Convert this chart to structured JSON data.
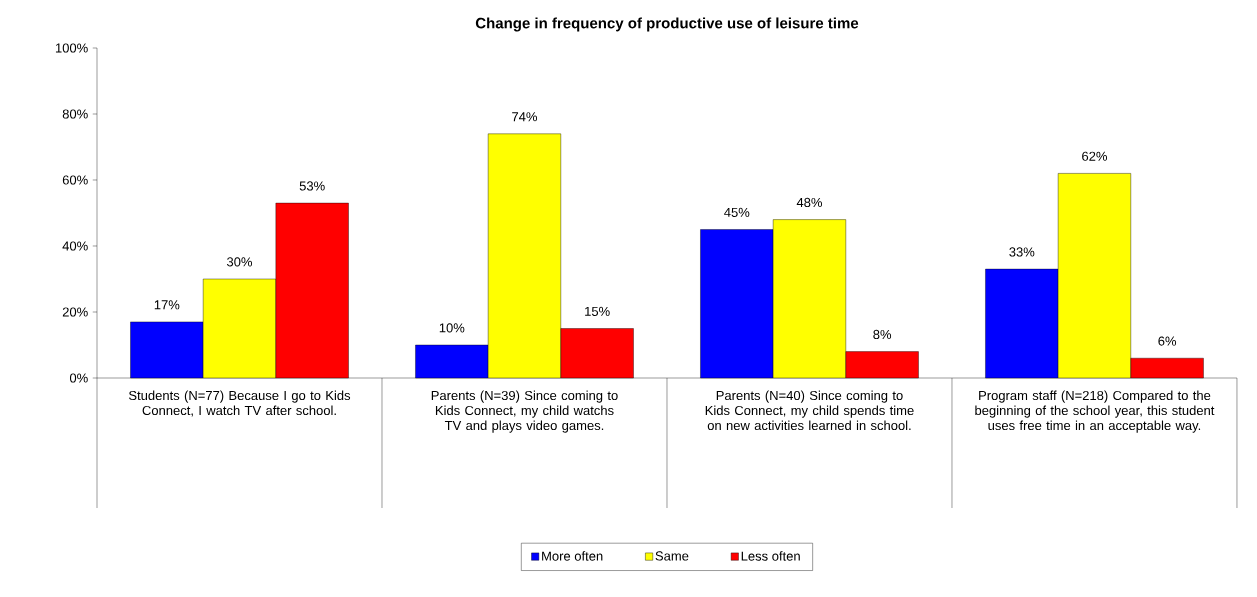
{
  "chart_data": {
    "type": "bar",
    "title": "Change in frequency of productive use of leisure time",
    "categories": [
      "Students (N=77) Because I go to Kids Connect, I watch TV after school.",
      "Parents (N=39) Since coming to Kids Connect, my child watchs TV and plays video games.",
      "Parents (N=40) Since coming to Kids Connect, my child spends time on new activities learned in school.",
      "Program staff (N=218) Compared to the beginning of the school year, this student uses free time in an acceptable way."
    ],
    "series": [
      {
        "name": "More often",
        "color": "#0000ff",
        "values": [
          17,
          10,
          45,
          33
        ],
        "value_labels": [
          "17%",
          "10%",
          "45%",
          "33%"
        ]
      },
      {
        "name": "Same",
        "color": "#ffff00",
        "values": [
          30,
          74,
          48,
          62
        ],
        "value_labels": [
          "30%",
          "74%",
          "48%",
          "62%"
        ]
      },
      {
        "name": "Less often",
        "color": "#ff0000",
        "values": [
          53,
          15,
          8,
          6
        ],
        "value_labels": [
          "53%",
          "15%",
          "8%",
          "6%"
        ]
      }
    ],
    "ylim": [
      0,
      100
    ],
    "yticks": [
      {
        "value": 0,
        "label": "0%"
      },
      {
        "value": 20,
        "label": "20%"
      },
      {
        "value": 40,
        "label": "40%"
      },
      {
        "value": 60,
        "label": "60%"
      },
      {
        "value": 80,
        "label": "80%"
      },
      {
        "value": 100,
        "label": "100%"
      }
    ],
    "grid": false,
    "legend": "bottom"
  }
}
